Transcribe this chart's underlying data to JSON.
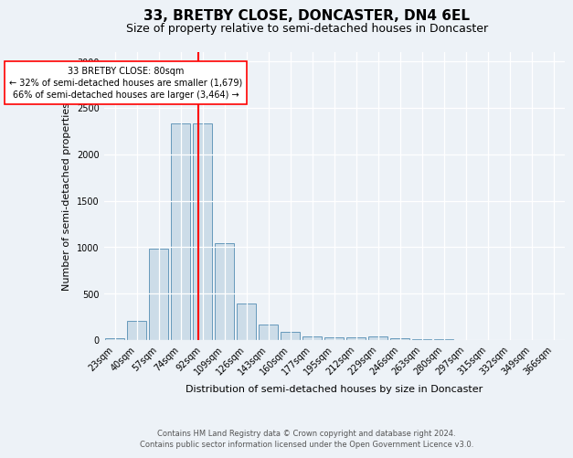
{
  "title": "33, BRETBY CLOSE, DONCASTER, DN4 6EL",
  "subtitle": "Size of property relative to semi-detached houses in Doncaster",
  "xlabel": "Distribution of semi-detached houses by size in Doncaster",
  "ylabel": "Number of semi-detached properties",
  "categories": [
    "23sqm",
    "40sqm",
    "57sqm",
    "74sqm",
    "92sqm",
    "109sqm",
    "126sqm",
    "143sqm",
    "160sqm",
    "177sqm",
    "195sqm",
    "212sqm",
    "229sqm",
    "246sqm",
    "263sqm",
    "280sqm",
    "297sqm",
    "315sqm",
    "332sqm",
    "349sqm",
    "366sqm"
  ],
  "values": [
    20,
    210,
    980,
    2330,
    2330,
    1040,
    390,
    170,
    90,
    40,
    30,
    25,
    35,
    20,
    5,
    5,
    2,
    2,
    2,
    2,
    2
  ],
  "bar_color": "#ccdce8",
  "bar_edge_color": "#6699bb",
  "red_line_x": 3.82,
  "annotation_text": "33 BRETBY CLOSE: 80sqm\n← 32% of semi-detached houses are smaller (1,679)\n66% of semi-detached houses are larger (3,464) →",
  "ylim": [
    0,
    3100
  ],
  "yticks": [
    0,
    500,
    1000,
    1500,
    2000,
    2500,
    3000
  ],
  "footer_line1": "Contains HM Land Registry data © Crown copyright and database right 2024.",
  "footer_line2": "Contains public sector information licensed under the Open Government Licence v3.0.",
  "background_color": "#edf2f7",
  "grid_color": "#ffffff",
  "title_fontsize": 11,
  "subtitle_fontsize": 9,
  "label_fontsize": 8,
  "tick_fontsize": 7,
  "annotation_fontsize": 7,
  "footer_fontsize": 6
}
